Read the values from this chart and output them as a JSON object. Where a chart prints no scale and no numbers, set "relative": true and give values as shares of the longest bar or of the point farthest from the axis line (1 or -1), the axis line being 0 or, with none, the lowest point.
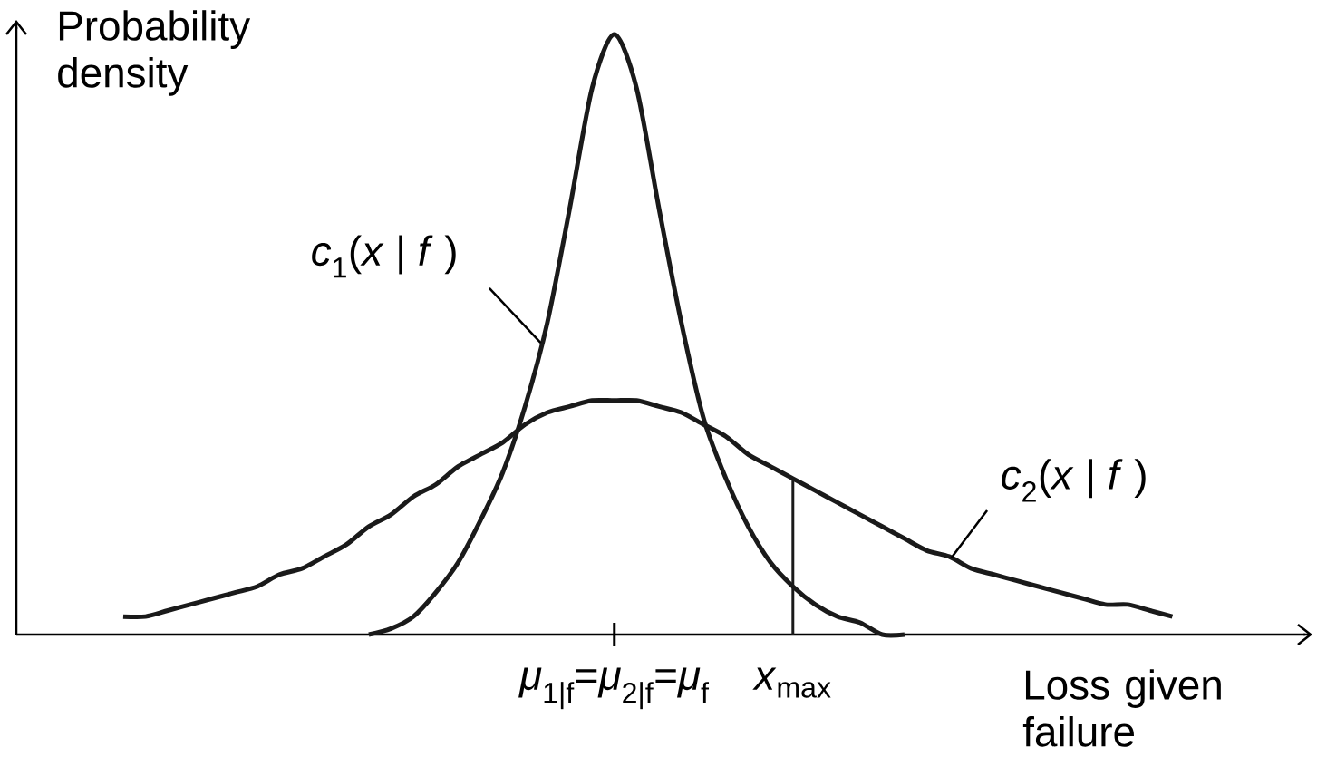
{
  "chart_data": {
    "type": "line",
    "relative": true,
    "ylabel": "Probability density",
    "xlabel": "Loss given failure",
    "marker": "none",
    "line_style": "solid",
    "categories": [
      null,
      null,
      null,
      null,
      null,
      null,
      null,
      null,
      null,
      null,
      null,
      null,
      null,
      null,
      null,
      null,
      null,
      null,
      null,
      null,
      null,
      null,
      "*μ*$_{1|f}$=*μ*$_{2|f}$=*μ*$_{f}$",
      null,
      null,
      null,
      null,
      null,
      null,
      null,
      "*x*$_{max}$",
      null,
      null,
      null,
      null,
      null,
      null,
      null,
      null,
      null,
      null,
      null,
      null,
      null,
      null,
      null,
      null,
      null
    ],
    "series": [
      {
        "name": "*c*$_{1}$(*x* | *f* )",
        "color": "#1a1a1a",
        "values": [
          null,
          null,
          null,
          null,
          null,
          null,
          null,
          null,
          null,
          null,
          null,
          0,
          0.01,
          0.03,
          0.07,
          0.12,
          0.19,
          0.27,
          0.38,
          0.52,
          0.71,
          0.91,
          1,
          0.91,
          0.71,
          0.52,
          0.36,
          0.26,
          0.18,
          0.12,
          0.08,
          0.05,
          0.03,
          0.02,
          0,
          0,
          null,
          null,
          null,
          null,
          null,
          null,
          null,
          null,
          null,
          null,
          null,
          null
        ]
      },
      {
        "name": "*c*$_{2}$(*x* | *f* )",
        "color": "#1a1a1a",
        "values": [
          0.03,
          0.03,
          0.04,
          0.05,
          0.06,
          0.07,
          0.08,
          0.1,
          0.11,
          0.13,
          0.15,
          0.18,
          0.2,
          0.23,
          0.25,
          0.28,
          0.3,
          0.32,
          0.35,
          0.37,
          0.38,
          0.39,
          0.39,
          0.39,
          0.38,
          0.37,
          0.35,
          0.33,
          0.3,
          0.28,
          0.26,
          0.24,
          0.22,
          0.2,
          0.18,
          0.16,
          0.14,
          0.13,
          0.11,
          0.1,
          0.09,
          0.08,
          0.07,
          0.06,
          0.05,
          0.05,
          0.04,
          0.03
        ]
      }
    ],
    "ref_lines": [
      {
        "axis": "x",
        "value": "*x*$_{max}$",
        "color": "#1a1a1a"
      }
    ]
  }
}
